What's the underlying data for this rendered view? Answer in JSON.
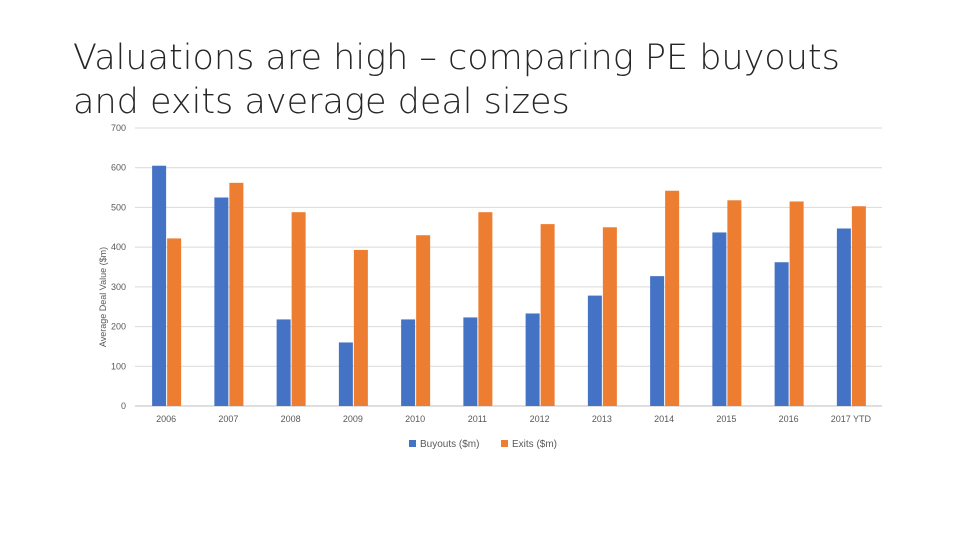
{
  "slide": {
    "title_line1": "Valuations are high – comparing PE buyouts",
    "title_line2": "and exits average deal sizes"
  },
  "chart_data": {
    "type": "bar",
    "categories": [
      "2006",
      "2007",
      "2008",
      "2009",
      "2010",
      "2011",
      "2012",
      "2013",
      "2014",
      "2015",
      "2016",
      "2017 YTD"
    ],
    "series": [
      {
        "name": "Buyouts ($m)",
        "color": "#4472C4",
        "values": [
          605,
          525,
          218,
          160,
          218,
          223,
          233,
          278,
          327,
          437,
          362,
          447
        ]
      },
      {
        "name": "Exits ($m)",
        "color": "#ED7D31",
        "values": [
          422,
          562,
          488,
          393,
          430,
          488,
          458,
          450,
          542,
          518,
          515,
          503
        ]
      }
    ],
    "ylabel": "Average Deal Value ($m)",
    "ylim": [
      0,
      700
    ],
    "yticks": [
      "0",
      "100",
      "200",
      "300",
      "400",
      "500",
      "600",
      "700"
    ],
    "grid": true,
    "legend": "bottom"
  }
}
